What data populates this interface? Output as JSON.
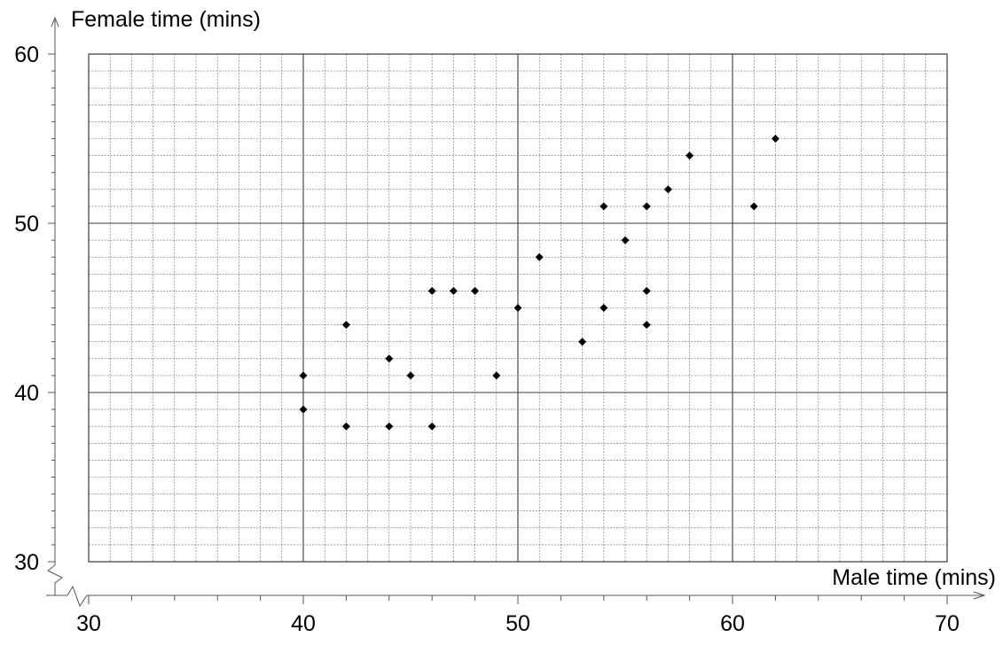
{
  "chart_data": {
    "type": "scatter",
    "xlabel": "Male time (mins)",
    "ylabel": "Female time (mins)",
    "xlim": [
      30,
      70
    ],
    "ylim": [
      30,
      60
    ],
    "x_ticks": [
      30,
      40,
      50,
      60,
      70
    ],
    "y_ticks": [
      30,
      40,
      50,
      60
    ],
    "x_tick_labels": [
      "30",
      "40",
      "50",
      "60",
      "70"
    ],
    "y_tick_labels": [
      "30",
      "40",
      "50",
      "60"
    ],
    "grid": true,
    "axis_break": true,
    "points": [
      {
        "x": 40,
        "y": 41
      },
      {
        "x": 40,
        "y": 39
      },
      {
        "x": 42,
        "y": 44
      },
      {
        "x": 42,
        "y": 38
      },
      {
        "x": 44,
        "y": 42
      },
      {
        "x": 44,
        "y": 38
      },
      {
        "x": 45,
        "y": 41
      },
      {
        "x": 46,
        "y": 46
      },
      {
        "x": 46,
        "y": 38
      },
      {
        "x": 47,
        "y": 46
      },
      {
        "x": 48,
        "y": 46
      },
      {
        "x": 49,
        "y": 41
      },
      {
        "x": 50,
        "y": 45
      },
      {
        "x": 51,
        "y": 48
      },
      {
        "x": 53,
        "y": 43
      },
      {
        "x": 54,
        "y": 51
      },
      {
        "x": 54,
        "y": 45
      },
      {
        "x": 55,
        "y": 49
      },
      {
        "x": 56,
        "y": 51
      },
      {
        "x": 56,
        "y": 46
      },
      {
        "x": 56,
        "y": 44
      },
      {
        "x": 57,
        "y": 52
      },
      {
        "x": 58,
        "y": 54
      },
      {
        "x": 61,
        "y": 51
      },
      {
        "x": 62,
        "y": 55
      }
    ],
    "colors": {
      "marker": "#000000",
      "minor_grid": "#6b6b6b",
      "major_grid": "#3a3a3a",
      "axis": "#555555"
    }
  }
}
